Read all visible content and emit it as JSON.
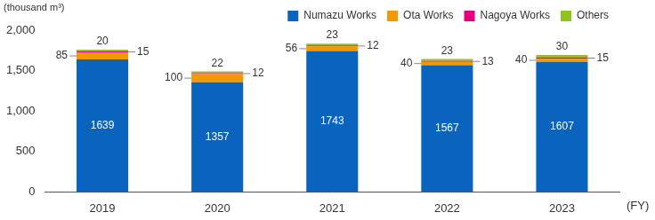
{
  "chart_data": {
    "type": "bar",
    "stacked": true,
    "data_labels": true,
    "grid": false,
    "legend": "top-right",
    "y_label": "(thousand m³)",
    "x_label": "(FY)",
    "categories": [
      "2019",
      "2020",
      "2021",
      "2022",
      "2023"
    ],
    "series": [
      {
        "name": "Numazu Works",
        "color": "#0a64be",
        "values": [
          1639,
          1357,
          1743,
          1567,
          1607
        ]
      },
      {
        "name": "Ota Works",
        "color": "#f39800",
        "values": [
          85,
          100,
          56,
          40,
          40
        ]
      },
      {
        "name": "Nagoya Works",
        "color": "#e4007f",
        "values": [
          15,
          12,
          12,
          13,
          15
        ]
      },
      {
        "name": "Others",
        "color": "#8fc31f",
        "values": [
          20,
          22,
          23,
          23,
          30
        ]
      }
    ],
    "ylim": [
      0,
      2000
    ],
    "yticks": [
      0,
      500,
      {
        "value": 1000,
        "label": "1,000"
      },
      {
        "value": 1500,
        "label": "1,500"
      },
      {
        "value": 2000,
        "label": "2,000"
      }
    ]
  }
}
